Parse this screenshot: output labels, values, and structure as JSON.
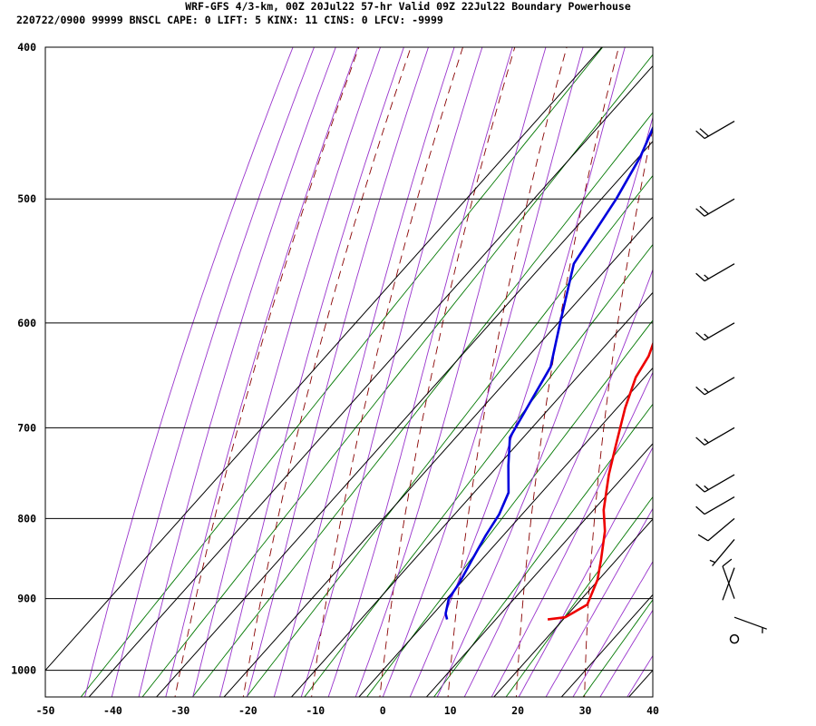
{
  "header": {
    "line1": "WRF-GFS 4/3-km, 00Z 20Jul22 57-hr Valid 09Z 22Jul22 Boundary Powerhouse",
    "line2": "220722/0900 99999  BNSCL   CAPE:     0 LIFT:     5 KINX:    11 CINS:     0 LFCV: -9999"
  },
  "chart_data": {
    "type": "skew-t",
    "xlabel": "",
    "ylabel": "",
    "x_ticks": [
      -50,
      -40,
      -30,
      -20,
      -10,
      0,
      10,
      20,
      30,
      40
    ],
    "y_ticks": [
      400,
      500,
      600,
      700,
      800,
      900,
      1000
    ],
    "xlim": [
      -50,
      40
    ],
    "ylim_pressure_hpa": [
      1040,
      400
    ],
    "y_scale": "log",
    "skew_deg_per_log_p": 90,
    "grid": true,
    "colors": {
      "temperature": "#ee0000",
      "dewpoint": "#0000dd",
      "dry_adiabats": "#880000",
      "moist_adiabats": "#9933cc",
      "mixing_ratio": "#007700",
      "grid": "#000000"
    },
    "series": [
      {
        "name": "temperature",
        "points": [
          {
            "p": 928,
            "t": 17.7
          },
          {
            "p": 925,
            "t": 20.0
          },
          {
            "p": 908,
            "t": 21.6
          },
          {
            "p": 875,
            "t": 19.8
          },
          {
            "p": 850,
            "t": 17.7
          },
          {
            "p": 815,
            "t": 14.5
          },
          {
            "p": 790,
            "t": 11.5
          },
          {
            "p": 750,
            "t": 7.6
          },
          {
            "p": 720,
            "t": 4.9
          },
          {
            "p": 680,
            "t": 1.2
          },
          {
            "p": 650,
            "t": -1.3
          },
          {
            "p": 630,
            "t": -2.2
          },
          {
            "p": 600,
            "t": -4.8
          },
          {
            "p": 550,
            "t": -9.2
          },
          {
            "p": 500,
            "t": -14.0
          },
          {
            "p": 470,
            "t": -17.4
          },
          {
            "p": 446,
            "t": -20.2
          }
        ]
      },
      {
        "name": "dewpoint",
        "points": [
          {
            "p": 928,
            "t": 2.8
          },
          {
            "p": 920,
            "t": 1.8
          },
          {
            "p": 900,
            "t": 0.3
          },
          {
            "p": 880,
            "t": -0.2
          },
          {
            "p": 850,
            "t": -1.4
          },
          {
            "p": 820,
            "t": -2.6
          },
          {
            "p": 795,
            "t": -3.4
          },
          {
            "p": 770,
            "t": -4.9
          },
          {
            "p": 740,
            "t": -8.5
          },
          {
            "p": 710,
            "t": -12.0
          },
          {
            "p": 690,
            "t": -12.9
          },
          {
            "p": 640,
            "t": -15.3
          },
          {
            "p": 600,
            "t": -19.7
          },
          {
            "p": 550,
            "t": -25.5
          },
          {
            "p": 500,
            "t": -27.8
          },
          {
            "p": 470,
            "t": -29.8
          },
          {
            "p": 446,
            "t": -32.2
          }
        ]
      }
    ],
    "wind_barbs": [
      {
        "p": 446,
        "dir_deg": 240,
        "speed_kt": 20
      },
      {
        "p": 500,
        "dir_deg": 240,
        "speed_kt": 20
      },
      {
        "p": 550,
        "dir_deg": 240,
        "speed_kt": 15
      },
      {
        "p": 600,
        "dir_deg": 240,
        "speed_kt": 15
      },
      {
        "p": 650,
        "dir_deg": 240,
        "speed_kt": 15
      },
      {
        "p": 700,
        "dir_deg": 240,
        "speed_kt": 15
      },
      {
        "p": 750,
        "dir_deg": 240,
        "speed_kt": 15
      },
      {
        "p": 775,
        "dir_deg": 240,
        "speed_kt": 10
      },
      {
        "p": 800,
        "dir_deg": 230,
        "speed_kt": 10
      },
      {
        "p": 825,
        "dir_deg": 220,
        "speed_kt": 5
      },
      {
        "p": 860,
        "dir_deg": 200,
        "speed_kt": 0
      },
      {
        "p": 900,
        "dir_deg": 340,
        "speed_kt": 10
      },
      {
        "p": 925,
        "dir_deg": 110,
        "speed_kt": 5
      }
    ],
    "calm_marker": {
      "p": 955
    }
  }
}
